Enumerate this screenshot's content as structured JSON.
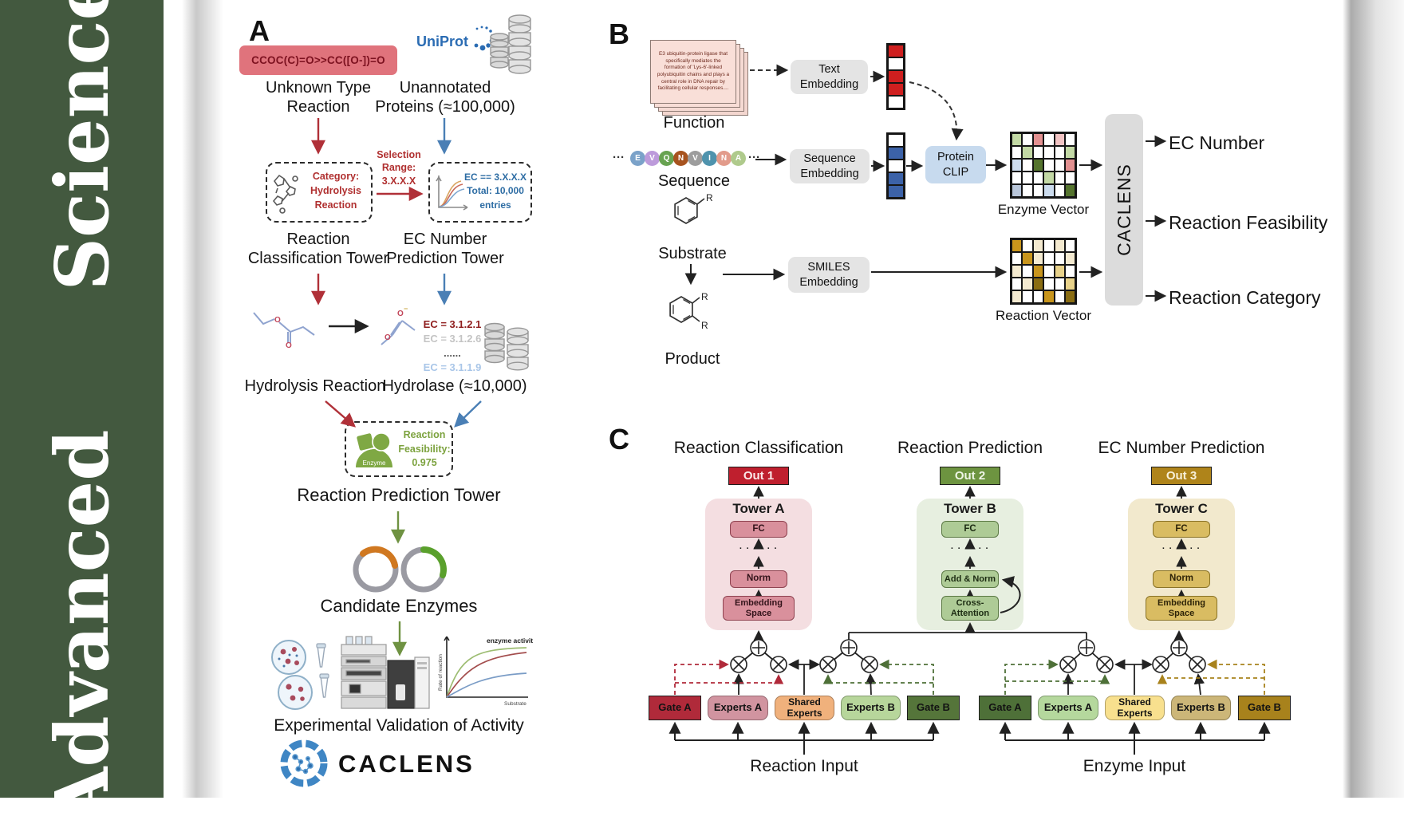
{
  "journal": {
    "sidebar_text": "Advanced   Science"
  },
  "colors": {
    "sidebar_green": "#43593f",
    "arrow_red": "#b03038",
    "arrow_blue": "#4a7fb5",
    "arrow_green": "#6f9242",
    "gate_red": "#b02a3a",
    "gate_dark_green": "#4e7038",
    "gate_gold": "#a8821c"
  },
  "panelA": {
    "label": "A",
    "smiles": "CCOC(C)=O>>CC([O-])=O",
    "unknown_line1": "Unknown Type",
    "unknown_line2": "Reaction",
    "uniprot": "UniProt",
    "unannotated_line1": "Unannotated",
    "unannotated_line2": "Proteins (≈100,000)",
    "category_line1": "Category:",
    "category_line2": "Hydrolysis",
    "category_line3": "Reaction",
    "selection_line1": "Selection",
    "selection_line2": "Range:",
    "selection_line3": "3.X.X.X",
    "ec_box_line1": "EC == 3.X.X.X",
    "ec_box_line2": "Total: 10,000",
    "ec_box_line3": "entries",
    "rct_line1": "Reaction",
    "rct_line2": "Classification Tower",
    "ecpt_line1": "EC Number",
    "ecpt_line2": "Prediction Tower",
    "ec_list": [
      "EC = 3.1.2.1",
      "EC = 3.1.2.6",
      "......",
      "EC = 3.1.1.9"
    ],
    "ec_list_colors": [
      "#8f1d1d",
      "#c4c4c4",
      "#555555",
      "#a9c6e8"
    ],
    "hydrolysis_label": "Hydrolysis Reaction",
    "hydrolase_label": "Hydrolase (≈10,000)",
    "enzyme_icon_label": "Enzyme",
    "feasibility_line1": "Reaction",
    "feasibility_line2": "Feasibility:",
    "feasibility_line3": "0.975",
    "rpt_label": "Reaction Prediction Tower",
    "candidate_label": "Candidate Enzymes",
    "graph": {
      "ylabel": "Rate of reaction",
      "xlabel": "Substrate",
      "annotation": "enzyme activity"
    },
    "validation_label": "Experimental Validation of Activity",
    "logo_text": "CACLENS"
  },
  "panelB": {
    "label": "B",
    "function_card_text": "E3 ubiquitin-protein ligase that specifically mediates the formation of 'Lys-6'-linked polyubiquitin chains and plays a central role in DNA repair by facilitating cellular responses....",
    "function_label": "Function",
    "ellipsis": "···",
    "sequence_residues": [
      {
        "letter": "E",
        "color": "#7ba2c9"
      },
      {
        "letter": "V",
        "color": "#bd9bdb"
      },
      {
        "letter": "Q",
        "color": "#68a351"
      },
      {
        "letter": "N",
        "color": "#a7531f"
      },
      {
        "letter": "V",
        "color": "#9d9d9d"
      },
      {
        "letter": "I",
        "color": "#4f93ad"
      },
      {
        "letter": "N",
        "color": "#e29b8b"
      },
      {
        "letter": "A",
        "color": "#afca8c"
      }
    ],
    "sequence_label": "Sequence",
    "substrate_label": "Substrate",
    "product_label": "Product",
    "r_label": "R",
    "boxes": {
      "text_l1": "Text",
      "text_l2": "Embedding",
      "seq_l1": "Sequence",
      "seq_l2": "Embedding",
      "smiles_l1": "SMILES",
      "smiles_l2": "Embedding",
      "clip_l1": "Protein",
      "clip_l2": "CLIP"
    },
    "text_vector_cells": [
      "#cf1f1f",
      "#ffffff",
      "#cf1f1f",
      "#cf1f1f",
      "#ffffff"
    ],
    "seq_vector_cells": [
      "#ffffff",
      "#3c62a8",
      "#ffffff",
      "#3c62a8",
      "#3c62a8"
    ],
    "enzyme_vector": {
      "label": "Enzyme Vector",
      "cells": [
        [
          "#c3d9a5",
          "#ffffff",
          "#e39191",
          "#ffffff",
          "#f2c4c4",
          "#ffffff"
        ],
        [
          "#ffffff",
          "#c3d9a5",
          "#ffffff",
          "#ffffff",
          "#ffffff",
          "#c3d9a5"
        ],
        [
          "#ccdcee",
          "#ffffff",
          "#55742e",
          "#ffffff",
          "#ffffff",
          "#e39191"
        ],
        [
          "#ffffff",
          "#ffffff",
          "#ffffff",
          "#c3d9a5",
          "#ffffff",
          "#ffffff"
        ],
        [
          "#b9c6d9",
          "#ffffff",
          "#ffffff",
          "#ccdcee",
          "#ffffff",
          "#55742e"
        ]
      ]
    },
    "reaction_vector": {
      "label": "Reaction Vector",
      "cells": [
        [
          "#c8951c",
          "#ffffff",
          "#f4ead0",
          "#ffffff",
          "#f4ead0",
          "#ffffff"
        ],
        [
          "#ffffff",
          "#c8951c",
          "#f4ead0",
          "#ffffff",
          "#ffffff",
          "#f4ead0"
        ],
        [
          "#f4ead0",
          "#ffffff",
          "#c8951c",
          "#ffffff",
          "#e8d28a",
          "#ffffff"
        ],
        [
          "#ffffff",
          "#f4ead0",
          "#8a6d12",
          "#ffffff",
          "#ffffff",
          "#e8d28a"
        ],
        [
          "#f4ead0",
          "#ffffff",
          "#ffffff",
          "#c8951c",
          "#ffffff",
          "#8a6d12"
        ]
      ]
    },
    "caclens_label": "CACLENS",
    "outputs": [
      "EC Number",
      "Reaction Feasibility",
      "Reaction Category"
    ]
  },
  "panelC": {
    "label": "C",
    "towers": [
      {
        "title": "Reaction Classification",
        "out": "Out 1",
        "tower": "Tower A",
        "fc": "FC",
        "dots": "· · · · · ·",
        "mid": "Norm",
        "bottom_l1": "Embedding",
        "bottom_l2": "Space"
      },
      {
        "title": "Reaction Prediction",
        "out": "Out 2",
        "tower": "Tower B",
        "fc": "FC",
        "dots": "· · · · · ·",
        "mid": "Add & Norm",
        "bottom_l1": "Cross-",
        "bottom_l2": "Attention"
      },
      {
        "title": "EC Number Prediction",
        "out": "Out 3",
        "tower": "Tower C",
        "fc": "FC",
        "dots": "· · · · · ·",
        "mid": "Norm",
        "bottom_l1": "Embedding",
        "bottom_l2": "Space"
      }
    ],
    "moe_groups": [
      {
        "input_label": "Reaction Input",
        "boxes": [
          {
            "label": "Gate A",
            "bg": "#b02a3a"
          },
          {
            "label": "Experts A",
            "bg": "#d194a0"
          },
          {
            "label": "Shared Experts",
            "bg": "#f0b17c"
          },
          {
            "label": "Experts B",
            "bg": "#b7d69b"
          },
          {
            "label": "Gate B",
            "bg": "#55753a"
          }
        ]
      },
      {
        "input_label": "Enzyme Input",
        "boxes": [
          {
            "label": "Gate A",
            "bg": "#4e7038"
          },
          {
            "label": "Experts A",
            "bg": "#b5d89d"
          },
          {
            "label": "Shared Experts",
            "bg": "#f8e08e"
          },
          {
            "label": "Experts B",
            "bg": "#ccb678"
          },
          {
            "label": "Gate B",
            "bg": "#a8821c"
          }
        ]
      }
    ]
  }
}
